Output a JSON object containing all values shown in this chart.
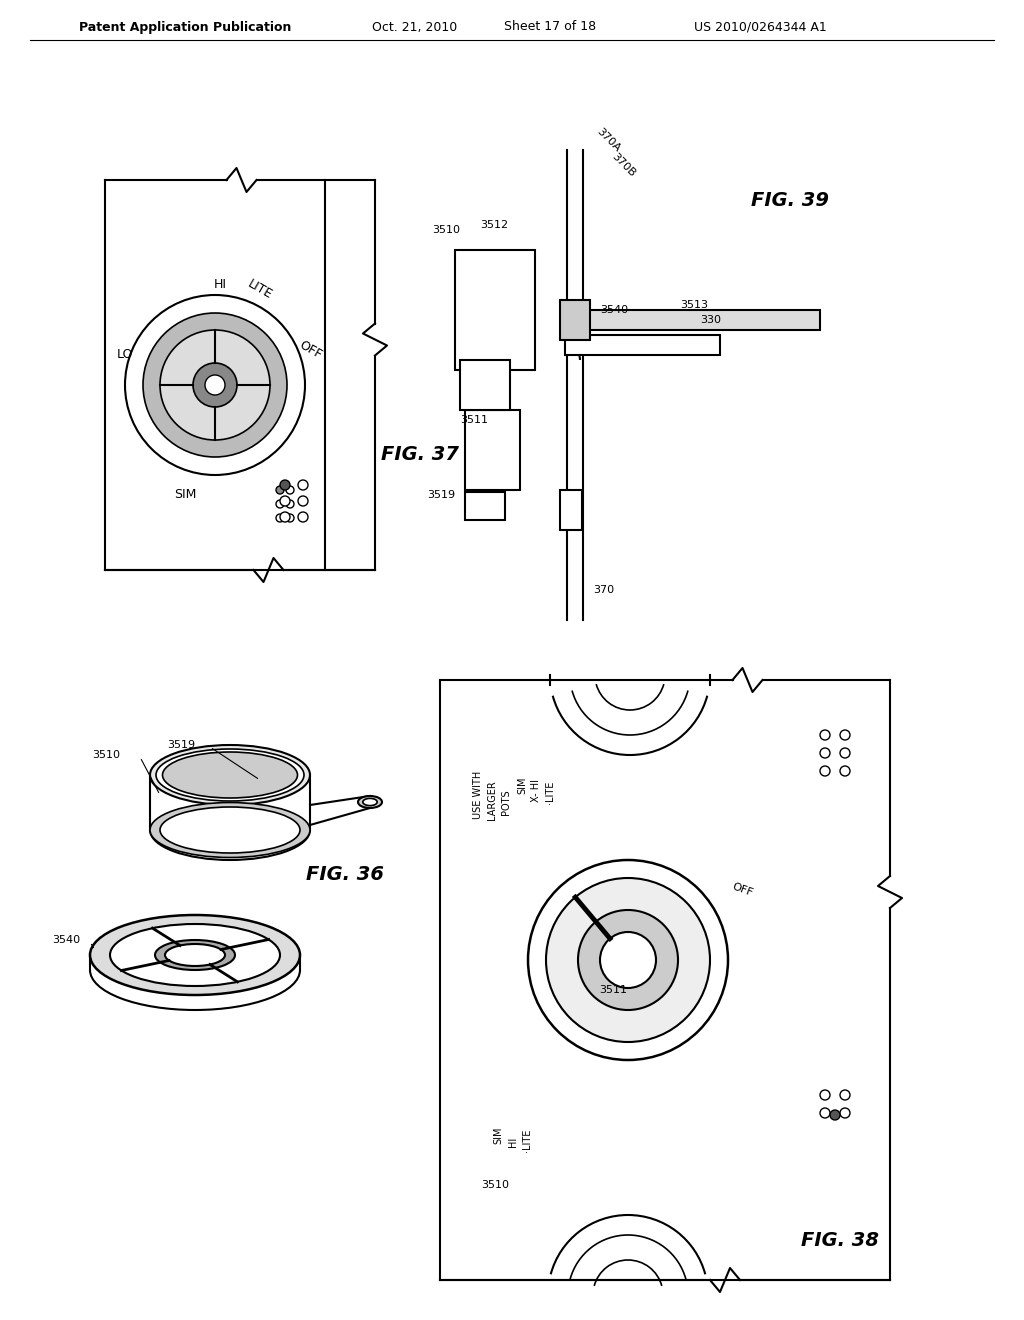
{
  "bg_color": "#ffffff",
  "header_text": "Patent Application Publication",
  "header_date": "Oct. 21, 2010",
  "header_sheet": "Sheet 17 of 18",
  "header_patent": "US 2010/0264344 A1",
  "fig37_label": "FIG. 37",
  "fig39_label": "FIG. 39",
  "fig36_label": "FIG. 36",
  "fig38_label": "FIG. 38",
  "line_color": "#000000",
  "gray_light": "#cccccc",
  "gray_mid": "#999999",
  "gray_dark": "#555555"
}
